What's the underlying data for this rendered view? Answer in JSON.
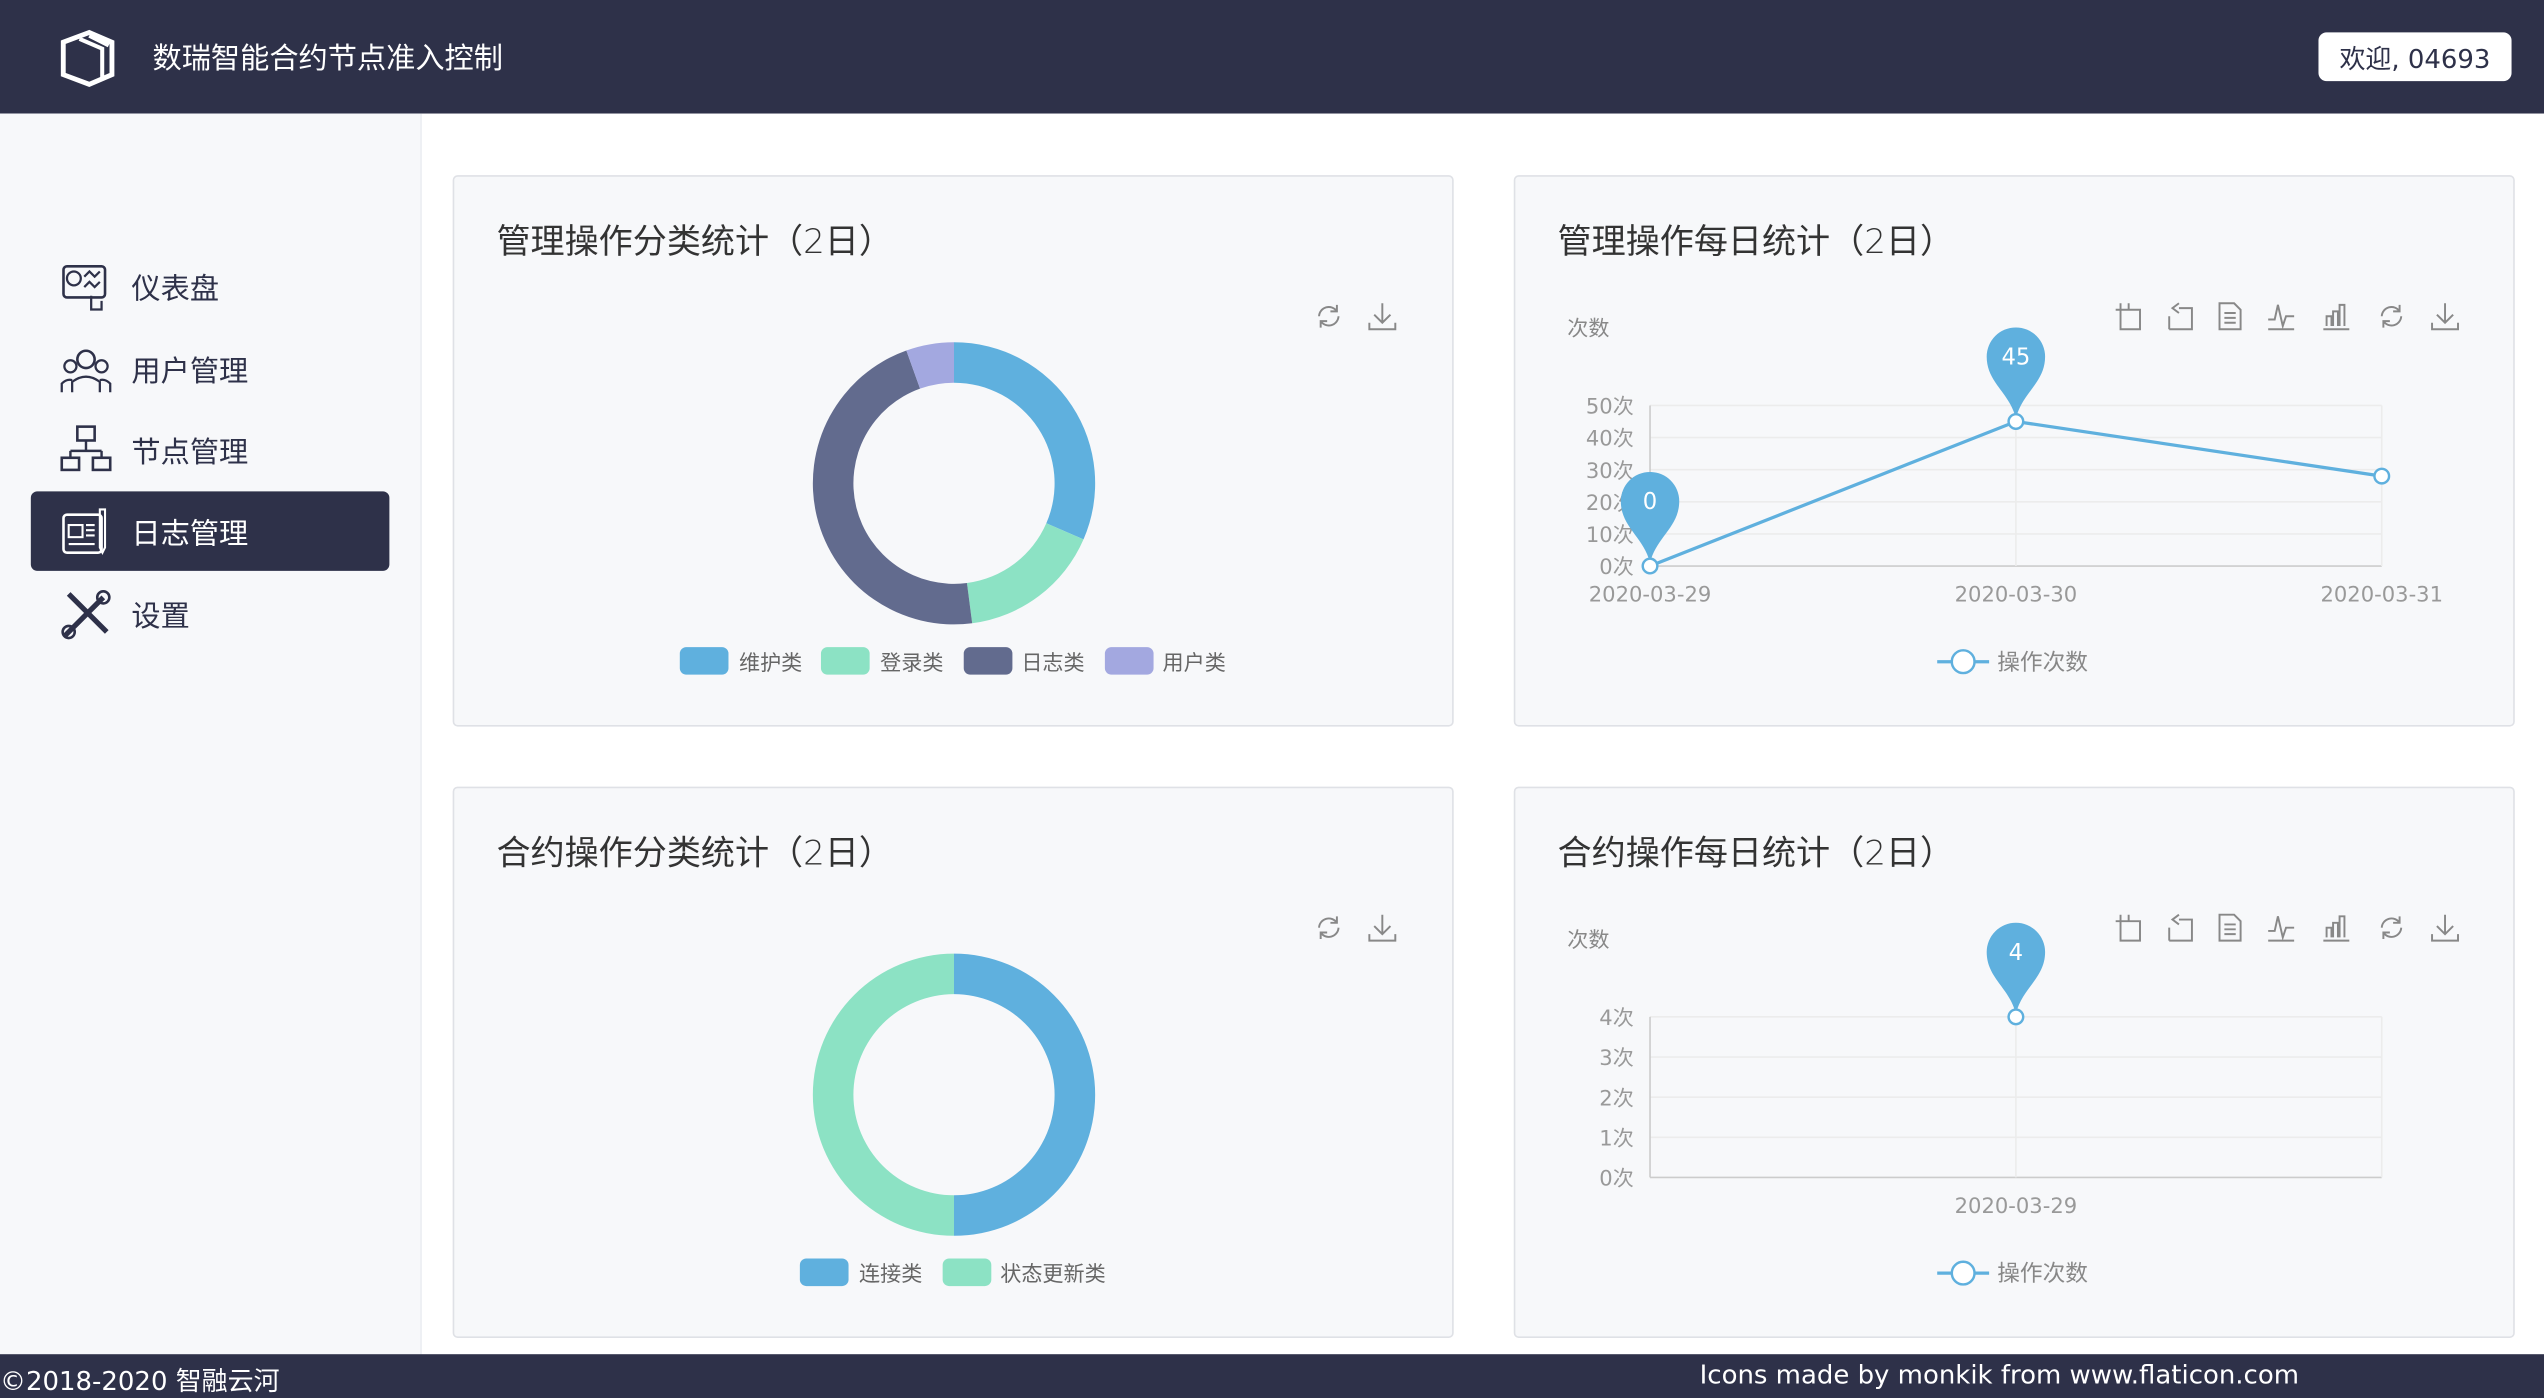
{
  "header": {
    "title": "数瑞智能合约节点准入控制",
    "welcome": "欢迎, 04693"
  },
  "sidebar": {
    "items": [
      {
        "label": "仪表盘",
        "icon": "dashboard-icon",
        "active": false
      },
      {
        "label": "用户管理",
        "icon": "users-icon",
        "active": false
      },
      {
        "label": "节点管理",
        "icon": "network-icon",
        "active": false
      },
      {
        "label": "日志管理",
        "icon": "log-icon",
        "active": true
      },
      {
        "label": "设置",
        "icon": "tools-icon",
        "active": false
      }
    ]
  },
  "toolbar": {
    "pie": [
      "refresh-icon",
      "download-icon"
    ],
    "line": [
      "zoom-icon",
      "zoom-reset-icon",
      "data-view-icon",
      "line-chart-icon",
      "bar-chart-icon",
      "refresh-icon",
      "download-icon"
    ]
  },
  "chart_data": [
    {
      "type": "pie",
      "title": "管理操作分类统计（2日）",
      "categories": [
        "维护类",
        "登录类",
        "日志类",
        "用户类"
      ],
      "values": [
        23,
        12,
        34,
        4
      ],
      "colors": [
        "#5fb0de",
        "#8ce2c4",
        "#626b8e",
        "#a3a8e0"
      ],
      "legend": "bottom"
    },
    {
      "type": "line",
      "title": "管理操作每日统计（2日）",
      "ylabel": "次数",
      "x": [
        "2020-03-29",
        "2020-03-30",
        "2020-03-31"
      ],
      "series": [
        {
          "name": "操作次数",
          "values": [
            0,
            45,
            28
          ]
        }
      ],
      "yticks": [
        "0次",
        "10次",
        "20次",
        "30次",
        "40次",
        "50次"
      ],
      "ylim": [
        0,
        50
      ],
      "markpoints": [
        {
          "x": "2020-03-29",
          "value": "0"
        },
        {
          "x": "2020-03-30",
          "value": "45"
        }
      ],
      "color": "#5fb0de",
      "grid": true,
      "legend": "bottom"
    },
    {
      "type": "pie",
      "title": "合约操作分类统计（2日）",
      "categories": [
        "连接类",
        "状态更新类"
      ],
      "values": [
        2,
        2
      ],
      "colors": [
        "#5fb0de",
        "#8ce2c4"
      ],
      "legend": "bottom"
    },
    {
      "type": "line",
      "title": "合约操作每日统计（2日）",
      "ylabel": "次数",
      "x": [
        "2020-03-29"
      ],
      "series": [
        {
          "name": "操作次数",
          "values": [
            4
          ]
        }
      ],
      "yticks": [
        "0次",
        "1次",
        "2次",
        "3次",
        "4次"
      ],
      "ylim": [
        0,
        4
      ],
      "markpoints": [
        {
          "x": "2020-03-29",
          "value": "4"
        }
      ],
      "color": "#5fb0de",
      "grid": true,
      "legend": "bottom"
    }
  ],
  "footer": {
    "copyright": "©2018-2020 智融云河",
    "credit": "Icons made by monkik from www.flaticon.com"
  }
}
